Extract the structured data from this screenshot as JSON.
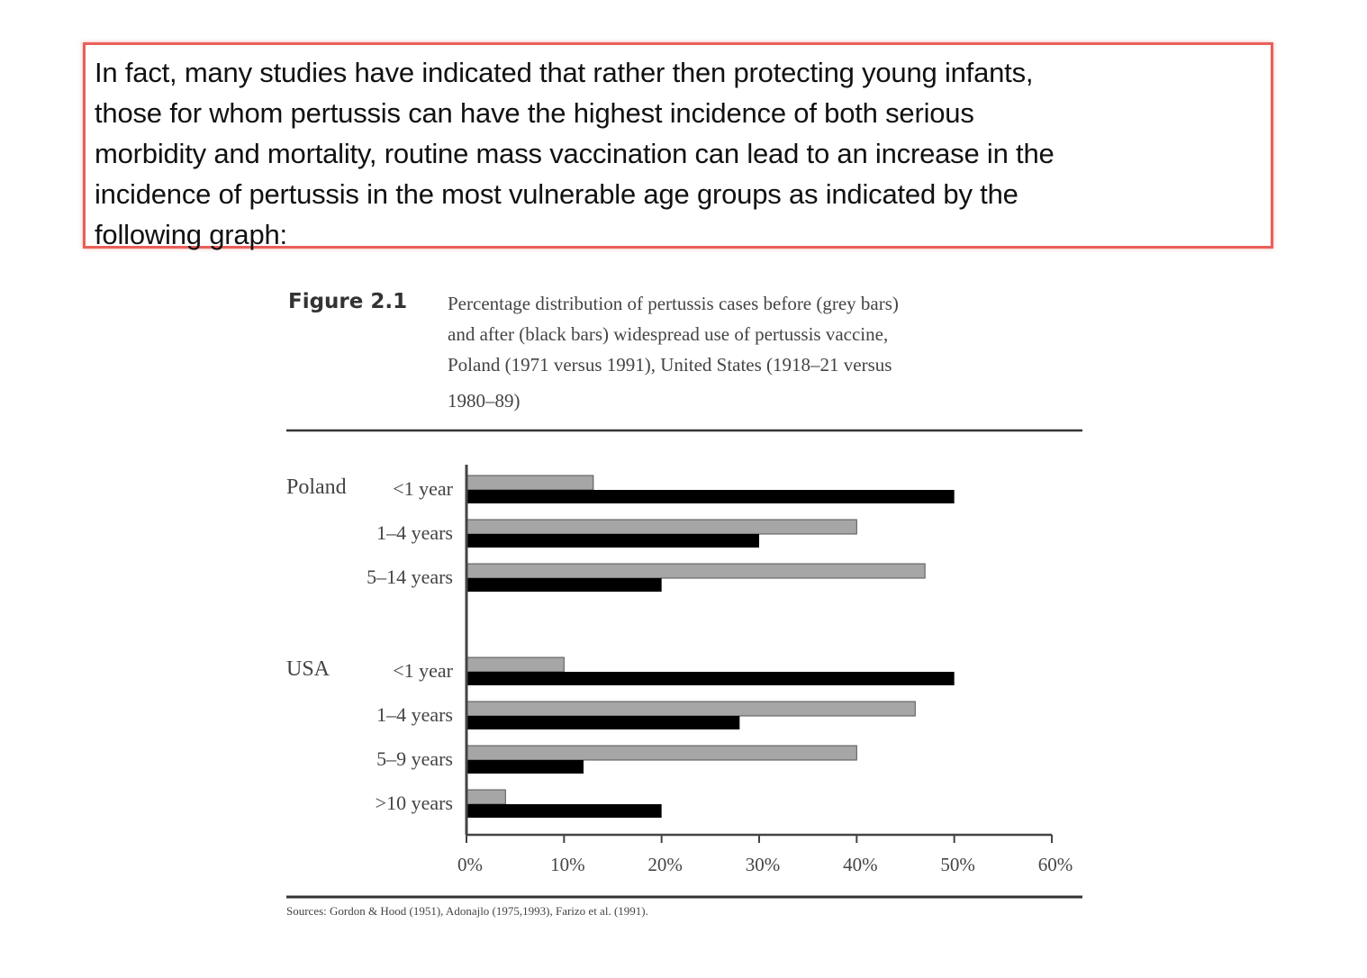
{
  "quote": {
    "lines": [
      "In fact, many studies have indicated that rather then protecting young infants,",
      "those for whom pertussis can have the highest incidence of both serious",
      "morbidity and mortality, routine mass vaccination can lead to an increase in the",
      "incidence of pertussis in the most vulnerable age groups as indicated by the",
      "following graph:"
    ]
  },
  "figure": {
    "label": "Figure 2.1",
    "caption_lines": [
      "Percentage distribution of pertussis cases before (grey bars)",
      "and after (black bars) widespread use of pertussis vaccine,",
      "Poland (1971 versus 1991), United States (1918–21 versus",
      "1980–89)"
    ],
    "sources": "Sources: Gordon & Hood (1951), Adonajlo (1975,1993), Farizo et al. (1991)."
  },
  "chart_data": {
    "type": "bar",
    "orientation": "horizontal",
    "groups": [
      {
        "name": "Poland",
        "categories": [
          "<1 year",
          "1–4 years",
          "5–14 years"
        ],
        "before": [
          13,
          40,
          47
        ],
        "after": [
          50,
          30,
          20
        ]
      },
      {
        "name": "USA",
        "categories": [
          "<1 year",
          "1–4 years",
          "5–9 years",
          ">10 years"
        ],
        "before": [
          10,
          46,
          40,
          4
        ],
        "after": [
          50,
          28,
          12,
          20
        ]
      }
    ],
    "series": [
      {
        "name": "before",
        "color": "#a6a6a6"
      },
      {
        "name": "after",
        "color": "#000000"
      }
    ],
    "xticks": [
      "0%",
      "10%",
      "20%",
      "30%",
      "40%",
      "50%",
      "60%"
    ],
    "xlim": [
      0,
      60
    ],
    "xlabel": "",
    "ylabel": ""
  }
}
